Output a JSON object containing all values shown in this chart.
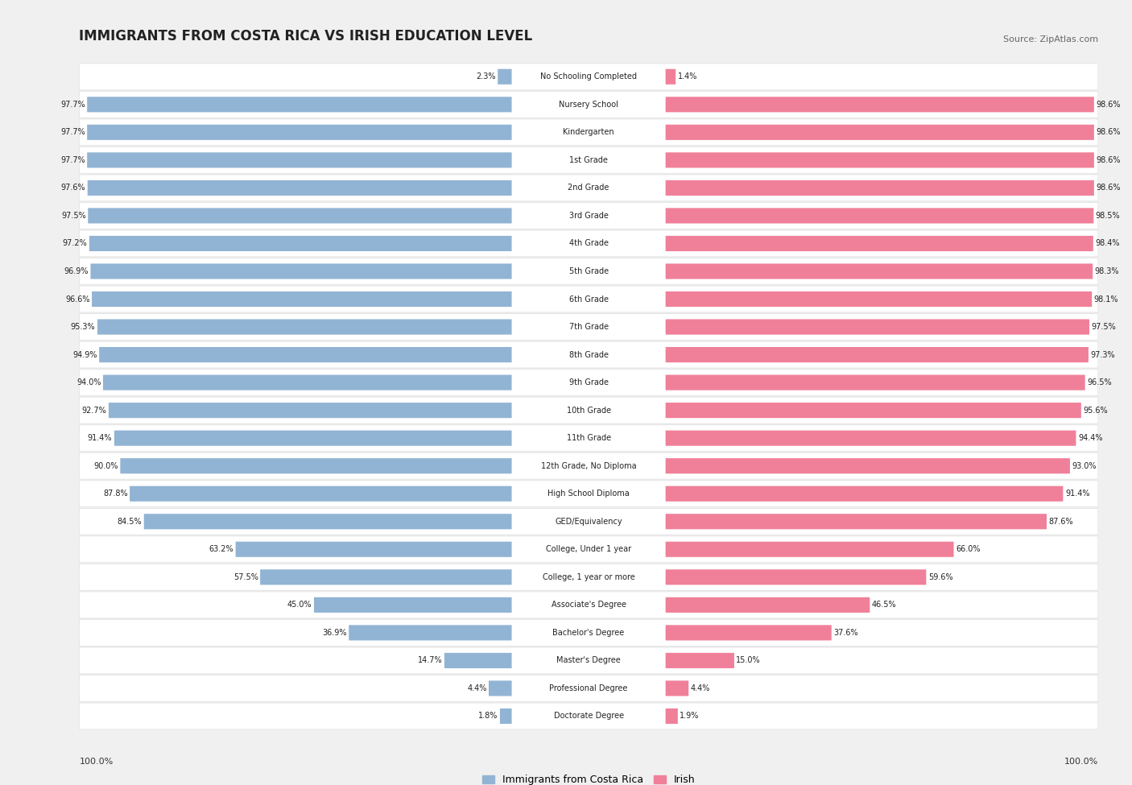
{
  "title": "IMMIGRANTS FROM COSTA RICA VS IRISH EDUCATION LEVEL",
  "source": "Source: ZipAtlas.com",
  "categories": [
    "No Schooling Completed",
    "Nursery School",
    "Kindergarten",
    "1st Grade",
    "2nd Grade",
    "3rd Grade",
    "4th Grade",
    "5th Grade",
    "6th Grade",
    "7th Grade",
    "8th Grade",
    "9th Grade",
    "10th Grade",
    "11th Grade",
    "12th Grade, No Diploma",
    "High School Diploma",
    "GED/Equivalency",
    "College, Under 1 year",
    "College, 1 year or more",
    "Associate's Degree",
    "Bachelor's Degree",
    "Master's Degree",
    "Professional Degree",
    "Doctorate Degree"
  ],
  "costa_rica": [
    2.3,
    97.7,
    97.7,
    97.7,
    97.6,
    97.5,
    97.2,
    96.9,
    96.6,
    95.3,
    94.9,
    94.0,
    92.7,
    91.4,
    90.0,
    87.8,
    84.5,
    63.2,
    57.5,
    45.0,
    36.9,
    14.7,
    4.4,
    1.8
  ],
  "irish": [
    1.4,
    98.6,
    98.6,
    98.6,
    98.6,
    98.5,
    98.4,
    98.3,
    98.1,
    97.5,
    97.3,
    96.5,
    95.6,
    94.4,
    93.0,
    91.4,
    87.6,
    66.0,
    59.6,
    46.5,
    37.6,
    15.0,
    4.4,
    1.9
  ],
  "blue_color": "#92b4d4",
  "pink_color": "#f08099",
  "bg_color": "#f0f0f0",
  "row_bg": "#ffffff",
  "row_bg_alt": "#f7f7f7",
  "label_left_100": "100.0%",
  "label_right_100": "100.0%",
  "legend_blue": "Immigrants from Costa Rica",
  "legend_pink": "Irish"
}
